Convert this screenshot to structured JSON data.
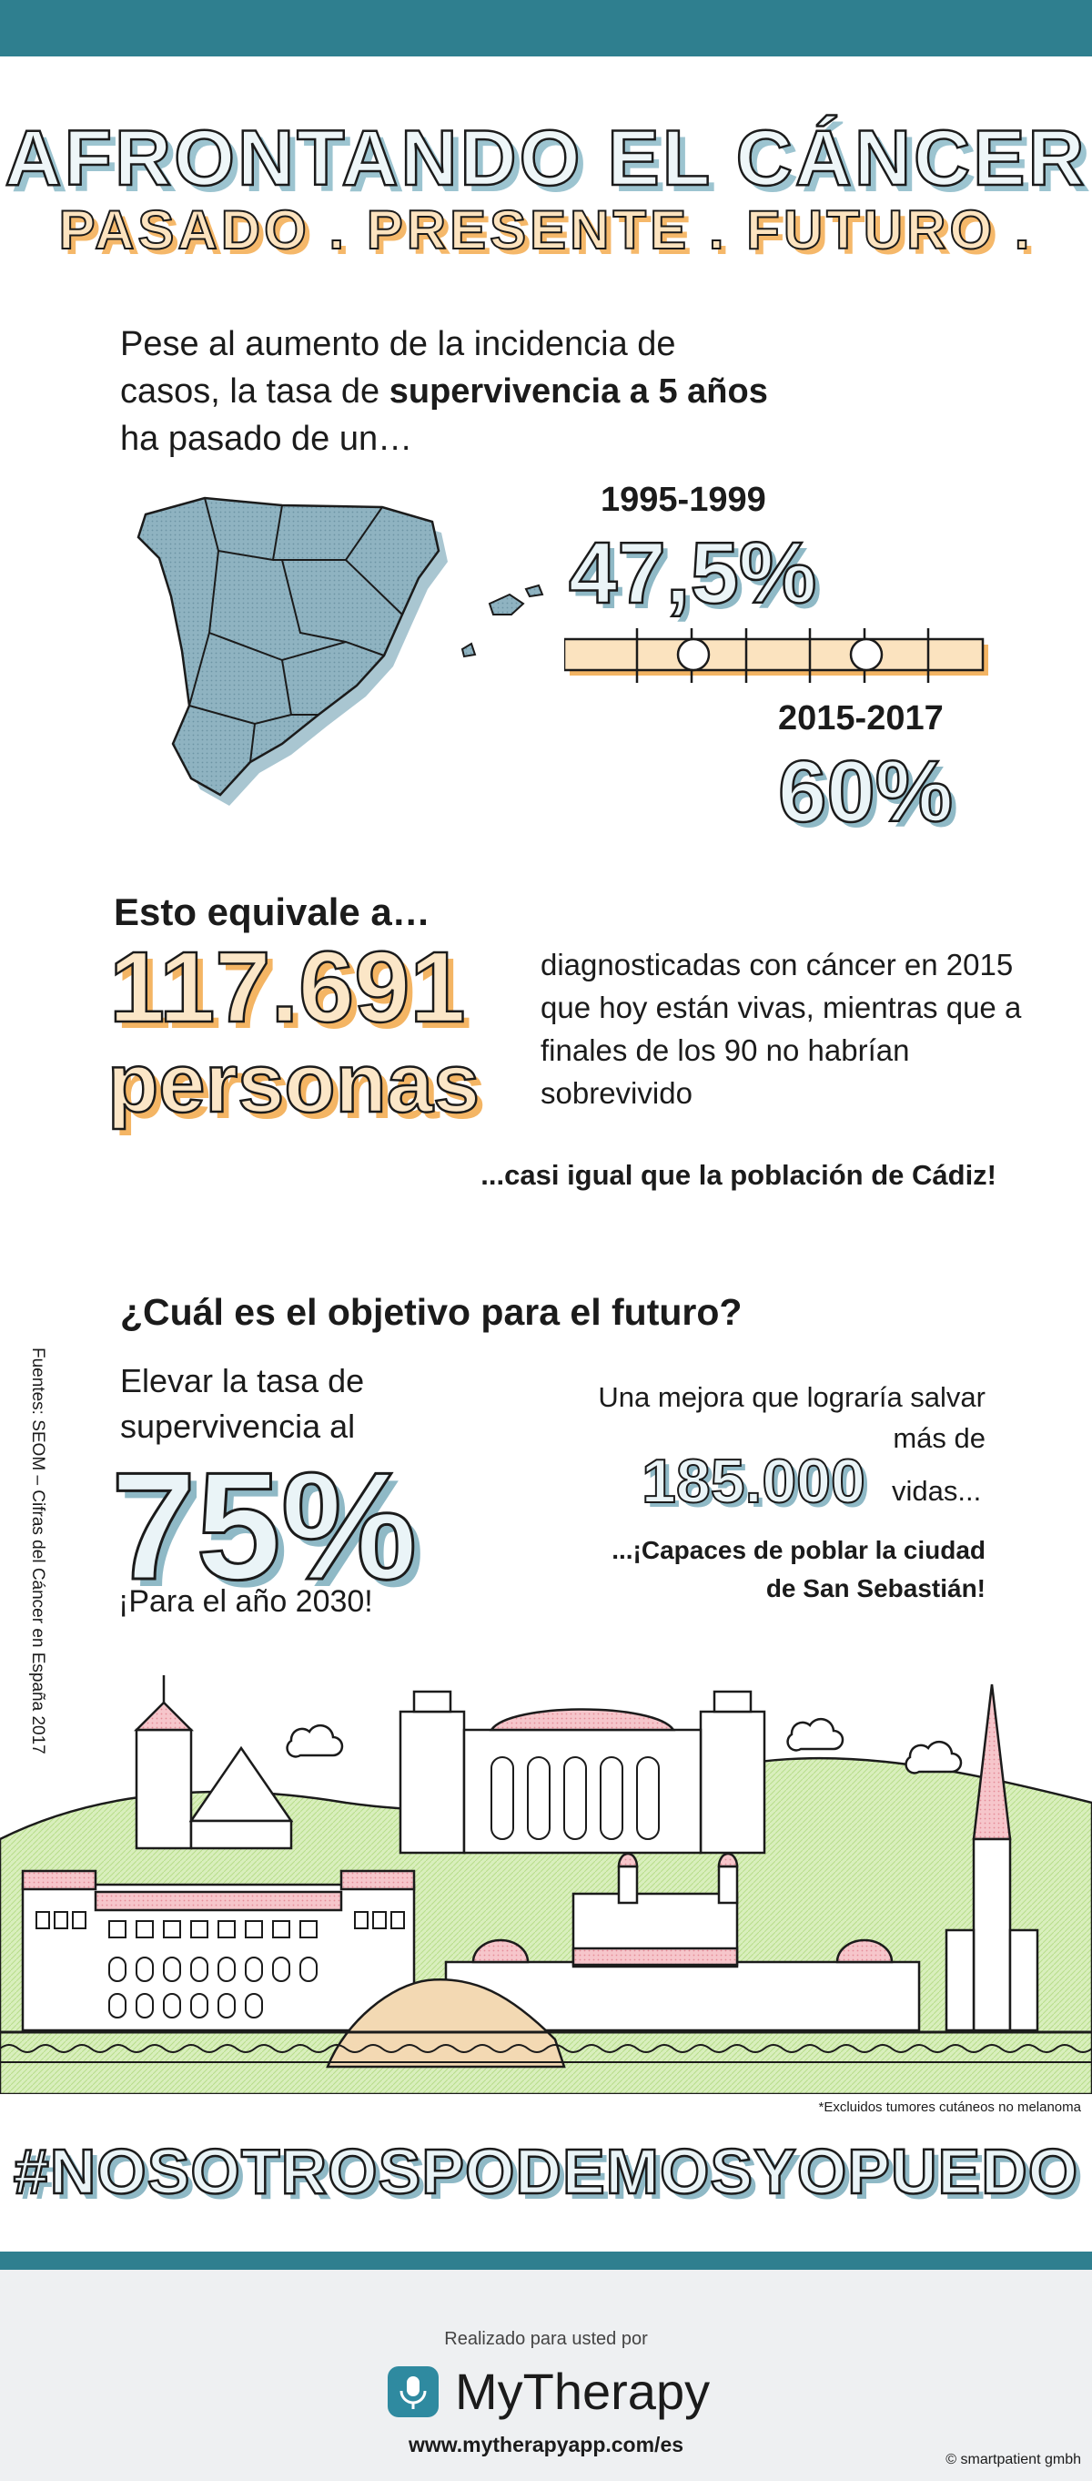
{
  "header": {
    "title": "AFRONTANDO EL CÁNCER",
    "subtitle": "PASADO . PRESENTE . FUTURO ."
  },
  "intro": {
    "part1": "Pese al aumento de la incidencia de casos, la tasa de ",
    "bold": "supervivencia a 5 años",
    "part2": " ha pasado de un…"
  },
  "survival": {
    "year_from": "1995-1999",
    "value_from": "47,5%",
    "year_to": "2015-2017",
    "value_to": "60%"
  },
  "equivalence": {
    "heading": "Esto equivale a…",
    "number": "117.691",
    "unit": "personas",
    "description": "diagnosticadas con cáncer en 2015 que hoy están vivas, mientras que a finales de los 90 no habrían sobrevivido",
    "comparison": "...casi igual que la población de Cádiz!"
  },
  "future": {
    "question": "¿Cuál es el objetivo para el futuro?",
    "goal_text": "Elevar la tasa de supervivencia al",
    "goal_value": "75%",
    "goal_year": "¡Para el año 2030!",
    "improvement_text": "Una mejora que lograría salvar más de",
    "lives_number": "185.000",
    "lives_unit": "vidas...",
    "city_comparison": "...¡Capaces de poblar la ciudad de San Sebastián!"
  },
  "sources": "Fuentes: SEOM – Cifras del Cáncer en España 2017",
  "footnote": "*Excluidos tumores cutáneos no melanoma",
  "hashtag": "#NOSOTROSPODEMOSYOPUEDO",
  "footer": {
    "made_for": "Realizado para usted por",
    "brand": "MyTherapy",
    "url": "www.mytherapyapp.com/es",
    "copyright": "© smartpatient gmbh"
  },
  "colors": {
    "teal": "#2f7f8f",
    "map_blue": "#8fb3c1",
    "orange": "#f4b564",
    "pink": "#f0a3ad",
    "green": "#c9e6a3"
  }
}
